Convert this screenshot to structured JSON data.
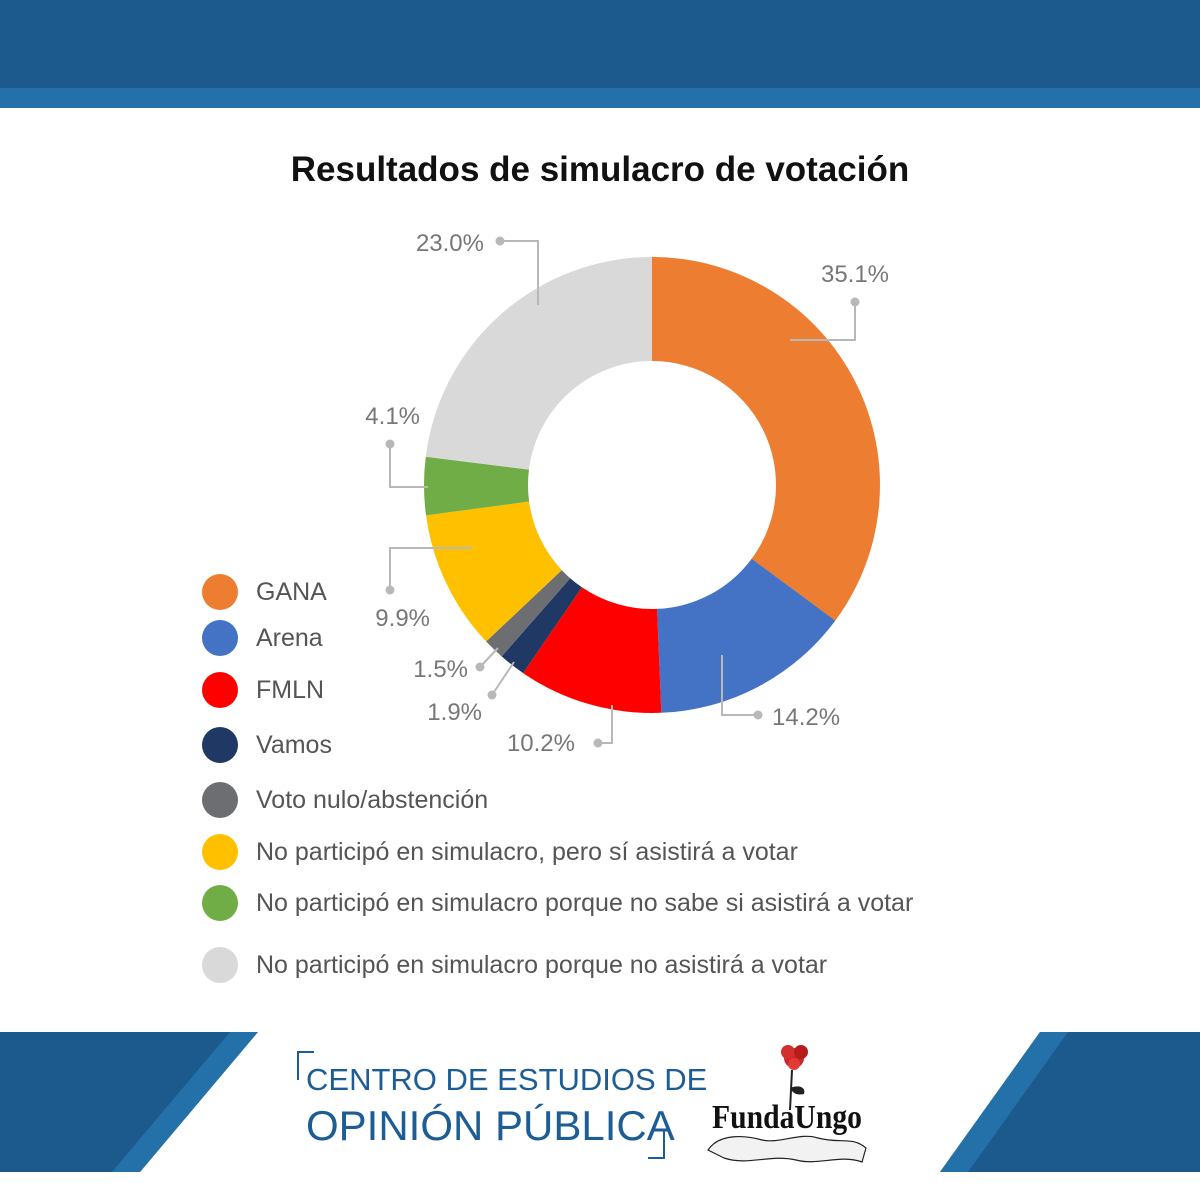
{
  "header": {
    "bar_color": "#1c5a8e",
    "stripe_color": "#2471aa"
  },
  "chart_data": {
    "type": "donut",
    "title": "Resultados de simulacro de votación",
    "series": [
      {
        "name": "GANA",
        "value": 35.1,
        "label": "35.1%",
        "color": "#ed7d31"
      },
      {
        "name": "Arena",
        "value": 14.2,
        "label": "14.2%",
        "color": "#4472c4"
      },
      {
        "name": "FMLN",
        "value": 10.2,
        "label": "10.2%",
        "color": "#ff0000"
      },
      {
        "name": "Vamos",
        "value": 1.9,
        "label": "1.9%",
        "color": "#203864"
      },
      {
        "name": "Voto nulo/abstención",
        "value": 1.5,
        "label": "1.5%",
        "color": "#6d6e71"
      },
      {
        "name": "No participó en simulacro, pero sí asistirá a votar",
        "value": 9.9,
        "label": "9.9%",
        "color": "#ffc000"
      },
      {
        "name": "No participó en simulacro porque no sabe si asistirá a votar",
        "value": 4.1,
        "label": "4.1%",
        "color": "#70ad47"
      },
      {
        "name": "No participó en simulacro porque no asistirá a votar",
        "value": 23.0,
        "label": "23.0%",
        "color": "#d9d9d9"
      }
    ],
    "legend_position": "bottom-left"
  },
  "footer": {
    "org_line1": "CENTRO DE ESTUDIOS DE",
    "org_line2": "OPINIÓN PÚBLICA",
    "logo_text": "FundaUngo",
    "band_color": "#1c5a8e",
    "text_color": "#1d5d96"
  }
}
